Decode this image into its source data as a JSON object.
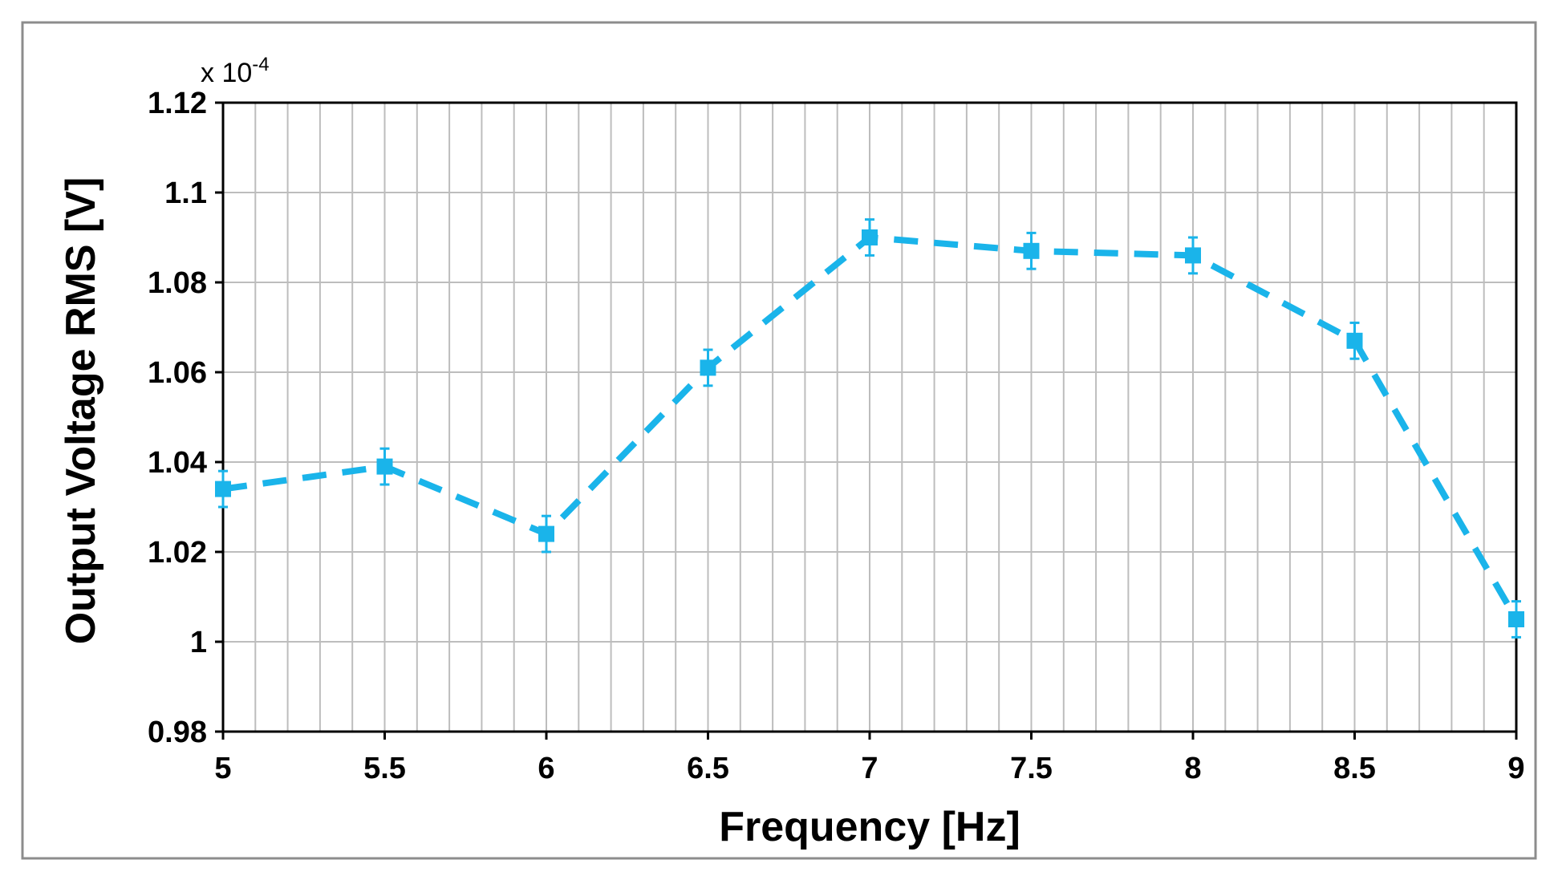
{
  "chart_data": {
    "type": "line",
    "xlabel": "Frequency [Hz]",
    "ylabel": "Output Voltage RMS [V]",
    "y_multiplier": {
      "base": "x 10",
      "exponent": "-4"
    },
    "xlim": [
      5,
      9
    ],
    "ylim": [
      0.98,
      1.12
    ],
    "x_ticks": [
      "5",
      "5.5",
      "6",
      "6.5",
      "7",
      "7.5",
      "8",
      "8.5",
      "9"
    ],
    "y_ticks": [
      "0.98",
      "1",
      "1.02",
      "1.04",
      "1.06",
      "1.08",
      "1.1",
      "1.12"
    ],
    "x_minor_step": 0.1,
    "grid": true,
    "series": [
      {
        "color": "#1ab4ea",
        "line_style": "dashed",
        "marker": "square",
        "x": [
          5,
          5.5,
          6,
          6.5,
          7,
          7.5,
          8,
          8.5,
          9
        ],
        "y": [
          1.034,
          1.039,
          1.024,
          1.061,
          1.09,
          1.087,
          1.086,
          1.067,
          1.005
        ],
        "error": [
          0.004,
          0.004,
          0.004,
          0.004,
          0.004,
          0.004,
          0.004,
          0.004,
          0.004
        ]
      }
    ]
  }
}
